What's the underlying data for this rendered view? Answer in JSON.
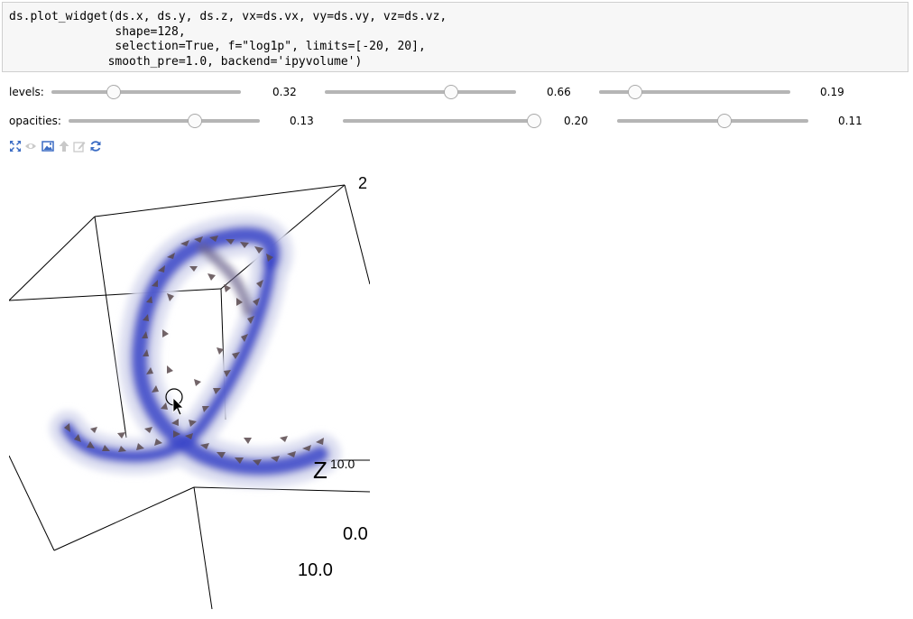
{
  "code_cell": {
    "lines": [
      "ds.plot_widget(ds.x, ds.y, ds.z, vx=ds.vx, vy=ds.vy, vz=ds.vz,",
      "               shape=128,",
      "               selection=True, f=\"log1p\", limits=[-20, 20],",
      "              smooth_pre=1.0, backend='ipyvolume')"
    ]
  },
  "levels": {
    "label": "levels:",
    "values": [
      "0.32",
      "0.66",
      "0.19"
    ],
    "fractions": [
      0.32,
      0.66,
      0.19
    ]
  },
  "opacities": {
    "label": "opacities:",
    "values": [
      "0.13",
      "0.20",
      "0.11"
    ],
    "fractions": [
      0.65,
      1.0,
      0.55
    ]
  },
  "toolbar": {
    "icons": [
      "fullscreen-icon",
      "eye-icon",
      "image-icon",
      "arrow-up-icon",
      "edit-icon",
      "refresh-icon"
    ],
    "accent": "#3b6cc4",
    "disabled": "#c9c9c9"
  },
  "viz": {
    "axis_labels": {
      "top": "2",
      "z_name": "Z",
      "z_tick": "10.0",
      "tick_zero": "0.0",
      "tick_ten": "10.0"
    },
    "colors": {
      "volume": "#3b46c8",
      "arrows": "#5a4a4e"
    }
  }
}
